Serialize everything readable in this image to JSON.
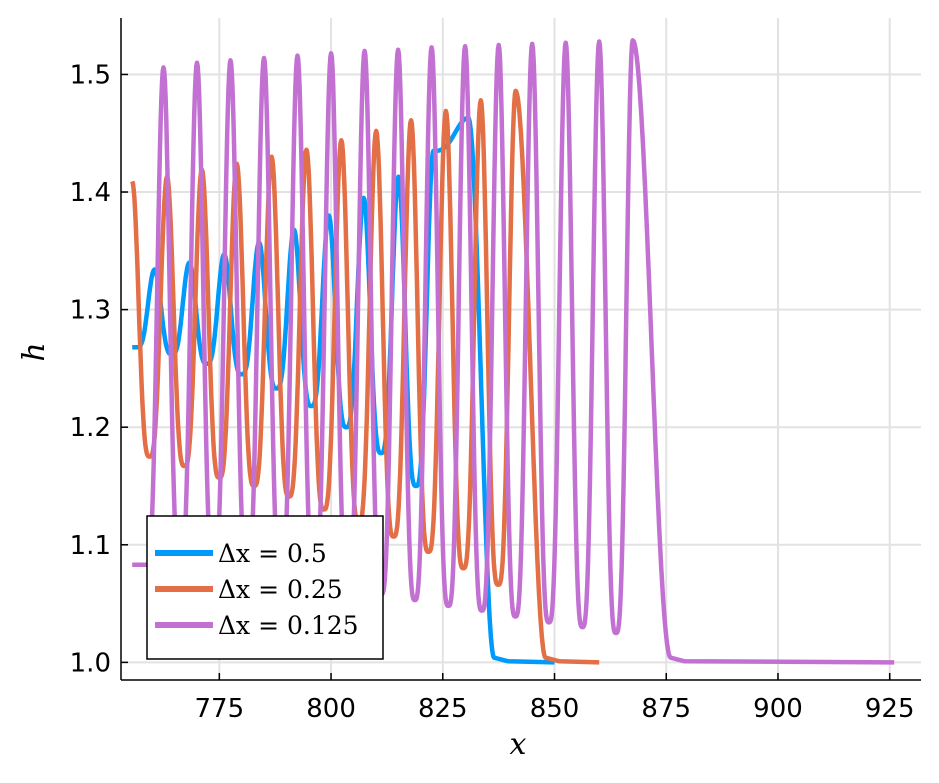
{
  "chart_data": {
    "type": "line",
    "xlabel": "x",
    "ylabel": "h",
    "xlim": [
      753,
      932
    ],
    "ylim": [
      0.985,
      1.548
    ],
    "xticks": [
      775,
      800,
      825,
      850,
      875,
      900,
      925
    ],
    "xtick_labels": [
      "775",
      "800",
      "825",
      "850",
      "875",
      "900",
      "925"
    ],
    "yticks": [
      1.0,
      1.1,
      1.2,
      1.3,
      1.4,
      1.5
    ],
    "ytick_labels": [
      "1.0",
      "1.1",
      "1.2",
      "1.3",
      "1.4",
      "1.5"
    ],
    "grid": true,
    "legend_position": "bottom-left",
    "series": [
      {
        "name": "Δx = 0.5",
        "legend_label": "Δx = 0.5",
        "color": "#009AFA",
        "x_start": 755.5,
        "period": 7.8,
        "first_peak_x": 760.5,
        "peaks": [
          1.334,
          1.34,
          1.347,
          1.357,
          1.368,
          1.38,
          1.395,
          1.413,
          1.435,
          1.463
        ],
        "troughs": [
          1.268,
          1.262,
          1.254,
          1.245,
          1.233,
          1.218,
          1.2,
          1.178,
          1.15
        ],
        "front_x": 836.5,
        "tail_end_x": 850,
        "baseline": 1.0
      },
      {
        "name": "Δx = 0.25",
        "legend_label": "Δx = 0.25",
        "color": "#E26F46",
        "x_start": 755.5,
        "period": 7.8,
        "first_peak_x": 755.5,
        "peaks": [
          1.409,
          1.413,
          1.419,
          1.424,
          1.43,
          1.436,
          1.444,
          1.452,
          1.461,
          1.469,
          1.478,
          1.486
        ],
        "troughs": [
          1.175,
          1.167,
          1.157,
          1.15,
          1.141,
          1.13,
          1.119,
          1.107,
          1.094,
          1.08,
          1.066,
          1.054
        ],
        "front_x": 848,
        "tail_end_x": 860,
        "baseline": 1.0
      },
      {
        "name": "Δx = 0.125",
        "legend_label": "Δx = 0.125",
        "color": "#C271D2",
        "x_start": 755.5,
        "period": 7.5,
        "first_peak_x": 762.5,
        "peaks": [
          1.506,
          1.51,
          1.512,
          1.514,
          1.516,
          1.518,
          1.52,
          1.521,
          1.523,
          1.524,
          1.525,
          1.526,
          1.527,
          1.528,
          1.529
        ],
        "troughs": [
          1.083,
          1.08,
          1.078,
          1.075,
          1.071,
          1.066,
          1.062,
          1.058,
          1.053,
          1.048,
          1.044,
          1.039,
          1.034,
          1.03,
          1.025,
          1.02
        ],
        "front_x": 876,
        "tail_end_x": 926,
        "baseline": 1.0
      }
    ]
  }
}
